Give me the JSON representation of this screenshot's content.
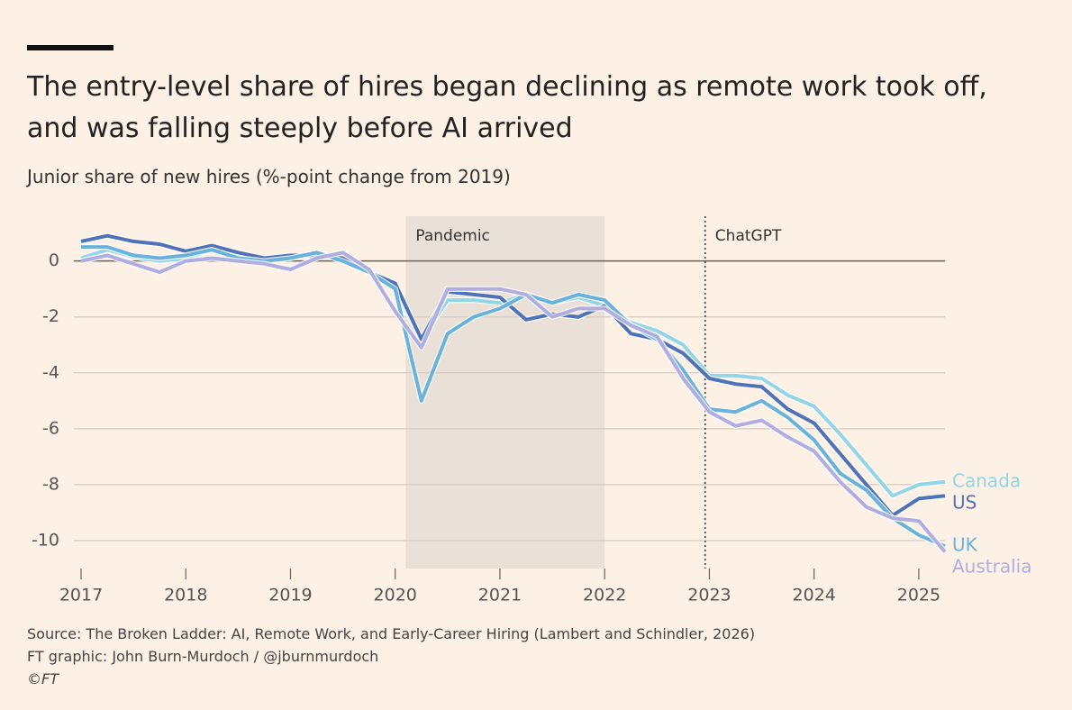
{
  "chart_data": {
    "type": "line",
    "title": "The entry-level share of hires began declining as remote work took off, and was falling steeply before AI arrived",
    "subtitle": "Junior share of new hires (%-point change from 2019)",
    "notes": [
      "Source: The Broken Ladder: AI, Remote Work, and Early-Career Hiring (Lambert and Schindler, 2026)",
      "FT graphic: John Burn-Murdoch / @jburnmurdoch",
      "©FT"
    ],
    "shaded_regions": [
      {
        "label": "Pandemic",
        "x": [
          2020.1,
          2022
        ]
      }
    ],
    "vlines": [
      {
        "label": "ChatGPT",
        "x": 2022.96
      }
    ],
    "x": [
      2017,
      2017.25,
      2017.5,
      2017.75,
      2018,
      2018.25,
      2018.5,
      2018.75,
      2019,
      2019.25,
      2019.5,
      2019.75,
      2020,
      2020.25,
      2020.5,
      2020.75,
      2021,
      2021.25,
      2021.5,
      2021.75,
      2022,
      2022.25,
      2022.5,
      2022.75,
      2023,
      2023.25,
      2023.5,
      2023.75,
      2024,
      2024.25,
      2024.5,
      2024.75,
      2025,
      2025.25
    ],
    "series": [
      {
        "name": "Canada",
        "color": "#93d4e6",
        "values": [
          0.1,
          0.4,
          0.15,
          0.0,
          0.1,
          0.4,
          0.2,
          0.1,
          0.1,
          0.3,
          0.1,
          -0.3,
          -1.0,
          -2.8,
          -1.4,
          -1.4,
          -1.5,
          -1.2,
          -1.5,
          -1.3,
          -1.6,
          -2.2,
          -2.5,
          -3.0,
          -4.1,
          -4.1,
          -4.2,
          -4.8,
          -5.2,
          -6.2,
          -7.3,
          -8.4,
          -8.0,
          -7.9
        ]
      },
      {
        "name": "US",
        "color": "#4f72b8",
        "values": [
          0.7,
          0.9,
          0.7,
          0.6,
          0.35,
          0.55,
          0.3,
          0.1,
          0.2,
          0.2,
          0.1,
          -0.4,
          -0.8,
          -2.8,
          -1.1,
          -1.2,
          -1.3,
          -2.1,
          -1.9,
          -2.0,
          -1.6,
          -2.6,
          -2.8,
          -3.3,
          -4.2,
          -4.4,
          -4.5,
          -5.3,
          -5.8,
          -6.9,
          -8.0,
          -9.1,
          -8.5,
          -8.4
        ]
      },
      {
        "name": "UK",
        "color": "#6ab2dc",
        "values": [
          0.5,
          0.5,
          0.2,
          0.1,
          0.2,
          0.4,
          0.1,
          0.0,
          0.1,
          0.3,
          0.0,
          -0.4,
          -1.0,
          -5.0,
          -2.6,
          -2.0,
          -1.7,
          -1.2,
          -1.5,
          -1.2,
          -1.4,
          -2.3,
          -2.8,
          -3.9,
          -5.3,
          -5.4,
          -5.0,
          -5.6,
          -6.4,
          -7.6,
          -8.2,
          -9.2,
          -9.8,
          -10.2
        ]
      },
      {
        "name": "Australia",
        "color": "#b0aee0",
        "values": [
          0.0,
          0.2,
          -0.1,
          -0.4,
          0.0,
          0.1,
          0.0,
          -0.1,
          -0.3,
          0.1,
          0.3,
          -0.3,
          -1.8,
          -3.1,
          -1.0,
          -1.0,
          -1.0,
          -1.2,
          -2.0,
          -1.7,
          -1.7,
          -2.3,
          -2.7,
          -4.2,
          -5.4,
          -5.9,
          -5.7,
          -6.3,
          -6.8,
          -7.9,
          -8.8,
          -9.2,
          -9.3,
          -10.4
        ]
      }
    ],
    "xlim": [
      2017,
      2025.25
    ],
    "xticks": [
      2017,
      2018,
      2019,
      2020,
      2021,
      2022,
      2023,
      2024,
      2025
    ],
    "ylim": [
      -11,
      1.6
    ],
    "yticks": [
      0,
      -2,
      -4,
      -6,
      -8,
      -10
    ],
    "grid": true
  }
}
